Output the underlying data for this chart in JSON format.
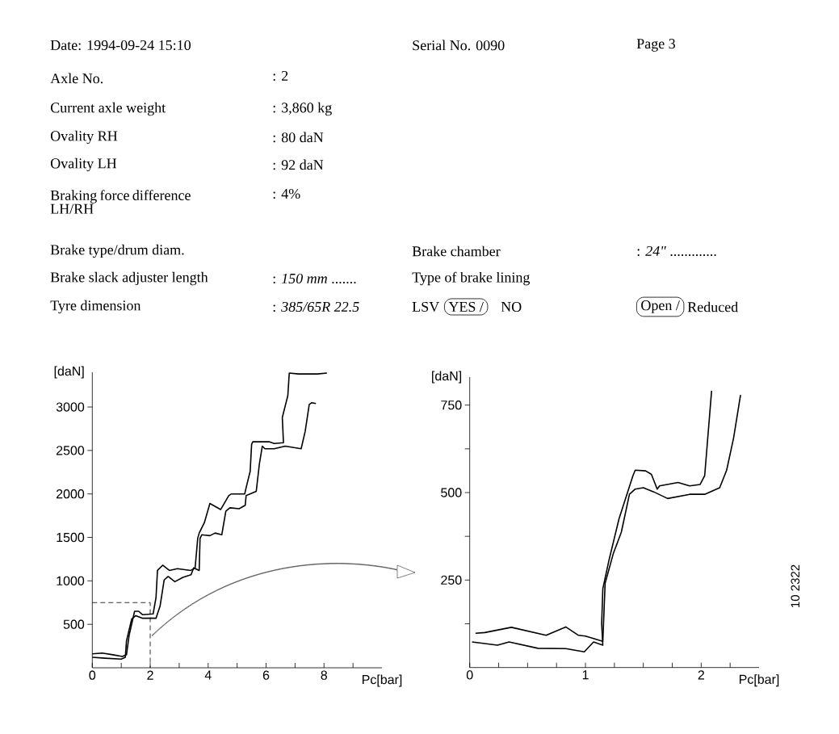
{
  "chart_data": [
    {
      "type": "other",
      "annotations": [
        "Date: 1994-09-24 15:10",
        "Serial No. 0090",
        "Page 3",
        "Axle No.",
        ": 2",
        "Current axle weight",
        ": 3,860 kg",
        "Ovality RH",
        ": 80 daN",
        "Ovality LH",
        ": 92 daN",
        "Braking force difference LH/RH",
        ": 4%",
        "Brake type/drum diam.",
        "Brake chamber",
        ": *24\"* .............",
        "Brake slack adjuster length",
        ": *150 mm* .......",
        "Type of brake lining",
        "Tyre dimension",
        ": *385/65R 22.5*",
        "LSV",
        "YES /",
        "NO",
        "Open /",
        "Reduced"
      ]
    },
    {
      "type": "line",
      "xlabel": "Pc[bar]",
      "ylabel": "[daN]",
      "xlim": [
        0,
        10
      ],
      "ylim": [
        0,
        3400
      ],
      "xticks": [
        0,
        {
          "value": 1,
          "label": null
        },
        2,
        {
          "value": 3,
          "label": null
        },
        4,
        {
          "value": 5,
          "label": null
        },
        6,
        {
          "value": 7,
          "label": null
        },
        8,
        {
          "value": 9,
          "label": null
        }
      ],
      "yticks": [
        500,
        1000,
        1500,
        2000,
        2500,
        3000
      ],
      "series": [
        {
          "color": "#000000",
          "x": [
            0,
            0.34,
            0.71,
            1.04,
            1.18,
            1.27,
            1.46,
            1.6,
            1.74,
            2.1,
            2.2,
            2.25,
            2.43,
            2.66,
            2.94,
            3.4,
            3.55,
            3.64,
            3.69,
            3.87,
            4.06,
            4.43,
            4.71,
            4.8,
            5.26,
            5.31,
            5.45,
            5.5,
            5.54,
            6.1,
            6.28,
            6.6,
            6.56,
            6.75,
            6.8,
            7.12,
            7.4,
            7.77,
            8.1
          ],
          "values": [
            160,
            170,
            150,
            130,
            150,
            370,
            650,
            650,
            610,
            620,
            810,
            1120,
            1180,
            1120,
            1140,
            1120,
            1150,
            1490,
            1550,
            1670,
            1890,
            1820,
            1980,
            2000,
            2000,
            2070,
            2260,
            2570,
            2600,
            2600,
            2580,
            2590,
            2880,
            3130,
            3390,
            3380,
            3380,
            3380,
            3390
          ]
        },
        {
          "color": "#000000",
          "x": [
            0,
            0.44,
            1.0,
            1.14,
            1.18,
            1.36,
            1.5,
            1.74,
            2.2,
            2.34,
            2.48,
            2.62,
            2.85,
            3.13,
            3.41,
            3.5,
            3.69,
            3.72,
            3.78,
            4.06,
            4.24,
            4.47,
            4.61,
            4.75,
            5.07,
            5.28,
            5.31,
            5.66,
            5.77,
            5.87,
            5.96,
            6.28,
            6.66,
            7.21,
            7.35,
            7.49,
            7.58,
            7.72
          ],
          "values": [
            120,
            110,
            100,
            120,
            310,
            560,
            600,
            570,
            570,
            710,
            1010,
            1050,
            990,
            1040,
            1070,
            1150,
            1120,
            1490,
            1530,
            1520,
            1550,
            1530,
            1800,
            1840,
            1830,
            1870,
            1980,
            2030,
            2350,
            2550,
            2520,
            2520,
            2550,
            2520,
            2720,
            3030,
            3050,
            3040
          ]
        },
        {
          "color": "#000000",
          "line_style": "dashed",
          "x": [
            0,
            2,
            2
          ],
          "values": [
            750,
            750,
            0
          ]
        }
      ]
    },
    {
      "type": "line",
      "xlabel": "Pc[bar]",
      "ylabel": "[daN]",
      "xlim": [
        0,
        2.5
      ],
      "ylim": [
        0,
        830
      ],
      "xticks": [
        0,
        {
          "value": 0.25,
          "label": null
        },
        {
          "value": 0.5,
          "label": null
        },
        {
          "value": 0.75,
          "label": null
        },
        1,
        {
          "value": 1.25,
          "label": null
        },
        {
          "value": 1.5,
          "label": null
        },
        {
          "value": 1.75,
          "label": null
        },
        2,
        {
          "value": 2.25,
          "label": null
        }
      ],
      "yticks": [
        {
          "value": 125,
          "label": null
        },
        250,
        {
          "value": 375,
          "label": null
        },
        500,
        {
          "value": 625,
          "label": null
        },
        750
      ],
      "annotations": [
        "10 2322"
      ],
      "series": [
        {
          "color": "#000000",
          "x": [
            0.05,
            0.13,
            0.36,
            0.66,
            0.83,
            0.94,
            1.0,
            1.15,
            1.17,
            1.24,
            1.31,
            1.38,
            1.43,
            1.5,
            1.59,
            1.71,
            1.9,
            2.03,
            2.16,
            2.22,
            2.28,
            2.34
          ],
          "values": [
            98,
            100,
            115,
            92,
            116,
            92,
            90,
            75,
            241,
            325,
            387,
            495,
            510,
            514,
            502,
            483,
            495,
            495,
            514,
            564,
            656,
            779
          ]
        },
        {
          "color": "#000000",
          "x": [
            0.02,
            0.24,
            0.34,
            0.59,
            0.83,
            0.99,
            1.07,
            1.15,
            1.14,
            1.15,
            1.2,
            1.29,
            1.41,
            1.43,
            1.52,
            1.57,
            1.62,
            1.64,
            1.8,
            1.9,
            1.99,
            2.03,
            2.09
          ],
          "values": [
            73,
            64,
            73,
            55,
            54,
            45,
            73,
            64,
            125,
            225,
            302,
            425,
            548,
            564,
            562,
            552,
            510,
            519,
            529,
            519,
            523,
            548,
            791
          ]
        }
      ]
    }
  ]
}
